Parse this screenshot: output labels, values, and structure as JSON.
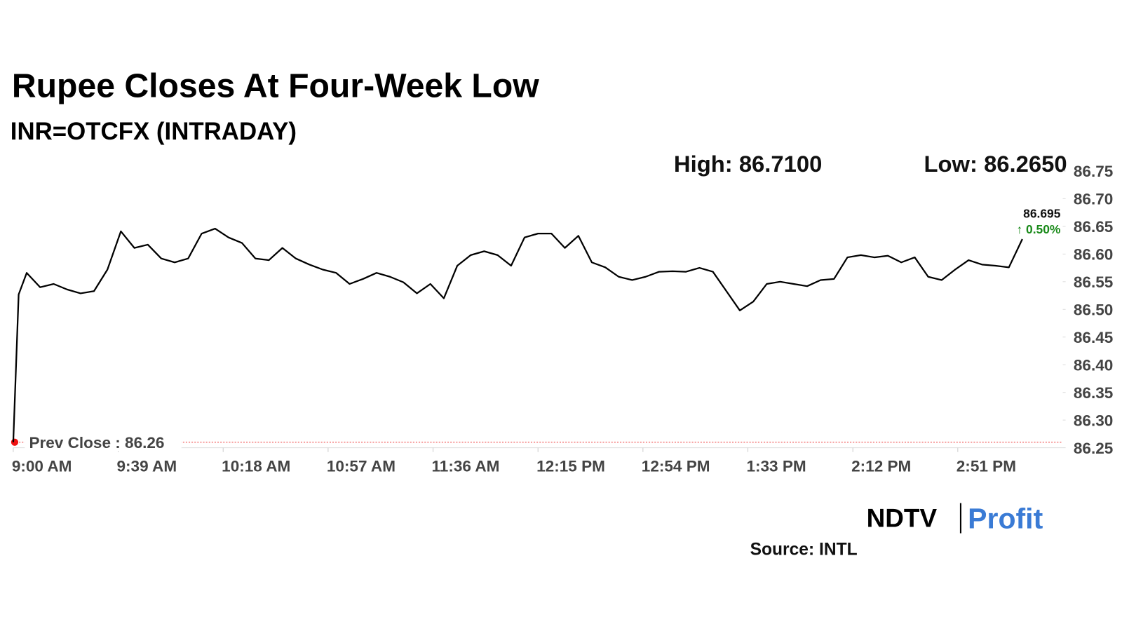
{
  "chart_data": {
    "type": "line",
    "title": "Rupee Closes At Four-Week Low",
    "subtitle": "INR=OTCFX (INTRADAY)",
    "high_label": "High: 86.7100",
    "low_label": "Low: 86.2650",
    "last_value_label": "86.695",
    "change_label": "↑ 0.50%",
    "prev_close": 86.26,
    "prev_close_label": "Prev Close : 86.26",
    "brand": [
      "NDTV",
      "Profit"
    ],
    "source": "Source: INTL",
    "color": "#000000",
    "x": [
      "9:00 AM",
      "9:02 AM",
      "9:05 AM",
      "9:10 AM",
      "9:15 AM",
      "9:20 AM",
      "9:25 AM",
      "9:30 AM",
      "9:35 AM",
      "9:40 AM",
      "9:45 AM",
      "9:50 AM",
      "9:55 AM",
      "10:00 AM",
      "10:05 AM",
      "10:10 AM",
      "10:15 AM",
      "10:20 AM",
      "10:25 AM",
      "10:30 AM",
      "10:35 AM",
      "10:40 AM",
      "10:45 AM",
      "10:50 AM",
      "10:55 AM",
      "11:00 AM",
      "11:05 AM",
      "11:10 AM",
      "11:15 AM",
      "11:20 AM",
      "11:25 AM",
      "11:30 AM",
      "11:35 AM",
      "11:40 AM",
      "11:45 AM",
      "11:50 AM",
      "11:55 AM",
      "12:00 PM",
      "12:05 PM",
      "12:10 PM",
      "12:15 PM",
      "12:20 PM",
      "12:25 PM",
      "12:30 PM",
      "12:35 PM",
      "12:40 PM",
      "12:45 PM",
      "12:50 PM",
      "12:55 PM",
      "1:00 PM",
      "1:05 PM",
      "1:10 PM",
      "1:15 PM",
      "1:20 PM",
      "1:25 PM",
      "1:30 PM",
      "1:35 PM",
      "1:40 PM",
      "1:45 PM",
      "1:50 PM",
      "1:55 PM",
      "2:00 PM",
      "2:05 PM",
      "2:10 PM",
      "2:15 PM",
      "2:20 PM",
      "2:25 PM",
      "2:30 PM",
      "2:35 PM",
      "2:40 PM",
      "2:45 PM",
      "2:50 PM",
      "2:55 PM",
      "3:00 PM",
      "3:05 PM",
      "3:10 PM",
      "3:15 PM"
    ],
    "values": [
      86.26,
      86.527,
      86.566,
      86.54,
      86.546,
      86.536,
      86.529,
      86.533,
      86.572,
      86.641,
      86.611,
      86.617,
      86.592,
      86.585,
      86.592,
      86.637,
      86.646,
      86.63,
      86.62,
      86.592,
      86.589,
      86.611,
      86.592,
      86.581,
      86.572,
      86.566,
      86.546,
      86.555,
      86.566,
      86.559,
      86.549,
      86.529,
      86.546,
      86.52,
      86.579,
      86.598,
      86.605,
      86.598,
      86.579,
      86.63,
      86.637,
      86.637,
      86.611,
      86.633,
      86.585,
      86.576,
      86.559,
      86.553,
      86.559,
      86.568,
      86.569,
      86.568,
      86.575,
      86.568,
      86.533,
      86.498,
      86.514,
      86.546,
      86.55,
      86.546,
      86.542,
      86.553,
      86.555,
      86.594,
      86.598,
      86.594,
      86.597,
      86.585,
      86.594,
      86.559,
      86.553,
      86.572,
      86.589,
      86.581,
      86.579,
      86.576,
      86.627
    ],
    "xlim": [
      "9:00 AM",
      "3:30 PM"
    ],
    "xticks": [
      "9:00 AM",
      "9:39 AM",
      "10:18 AM",
      "10:57 AM",
      "11:36 AM",
      "12:15 PM",
      "12:54 PM",
      "1:33 PM",
      "2:12 PM",
      "2:51 PM"
    ],
    "ylim": [
      86.25,
      86.75
    ],
    "yticks": [
      86.25,
      {
        "value": 86.3,
        "label": "86.30"
      },
      86.35,
      {
        "value": 86.4,
        "label": "86.40"
      },
      86.45,
      {
        "value": 86.5,
        "label": "86.50"
      },
      86.55,
      {
        "value": 86.6,
        "label": "86.60"
      },
      86.65,
      {
        "value": 86.7,
        "label": "86.70"
      },
      86.75
    ]
  }
}
